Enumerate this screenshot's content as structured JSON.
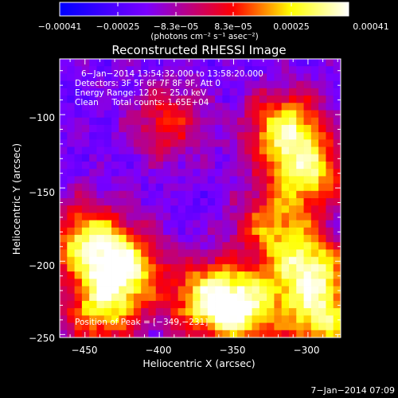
{
  "chart_data": {
    "type": "heatmap",
    "title": "Reconstructed RHESSI Image",
    "xlabel": "Heliocentric X (arcsec)",
    "ylabel": "Heliocentric Y (arcsec)",
    "xlim": [
      -467,
      -278
    ],
    "ylim": [
      -252,
      -62
    ],
    "xticks": [
      -450,
      -400,
      -350,
      -300
    ],
    "xtick_labels": [
      "−450",
      "−400",
      "−350",
      "−300"
    ],
    "yticks": [
      -100,
      -150,
      -200,
      -250
    ],
    "ytick_labels": [
      "−100",
      "−150",
      "−200",
      "−250"
    ],
    "colorbar": {
      "ticks": [
        "−0.00041",
        "−0.00025",
        "−8.3e−05",
        "8.3e−05",
        "0.00025",
        "0.00041"
      ],
      "range": [
        -0.00041,
        0.00041
      ],
      "unit_label": "(photons cm⁻² s⁻¹ asec⁻²)",
      "colormap": [
        "#0000ff",
        "#7a00ff",
        "#ff0000",
        "#ffff00",
        "#ffffff"
      ]
    },
    "annotations": [
      "6−Jan−2014 13:54:32.000 to 13:58:20.000",
      "Detectors: 3F 5F 6F 7F 8F 9F, Att 0",
      "Energy Range: 12.0 − 25.0 keV",
      "Clean     Total counts: 1.65E+04"
    ],
    "peak_label": "Position of Peak = [−349,−231]",
    "peak": [
      -349,
      -231
    ],
    "grid_size": 38,
    "bright_regions": [
      {
        "x": -425,
        "y": -205,
        "level": 1.0
      },
      {
        "x": -450,
        "y": -185,
        "level": 0.8
      },
      {
        "x": -440,
        "y": -235,
        "level": 0.7
      },
      {
        "x": -345,
        "y": -232,
        "level": 1.0
      },
      {
        "x": -370,
        "y": -225,
        "level": 0.75
      },
      {
        "x": -300,
        "y": -205,
        "level": 0.95
      },
      {
        "x": -290,
        "y": -240,
        "level": 0.85
      },
      {
        "x": -315,
        "y": -110,
        "level": 0.9
      },
      {
        "x": -300,
        "y": -140,
        "level": 0.8
      },
      {
        "x": -325,
        "y": -175,
        "level": 0.6
      },
      {
        "x": -395,
        "y": -105,
        "level": 0.5
      }
    ]
  },
  "footer": {
    "timestamp": "7−Jan−2014 07:09"
  }
}
